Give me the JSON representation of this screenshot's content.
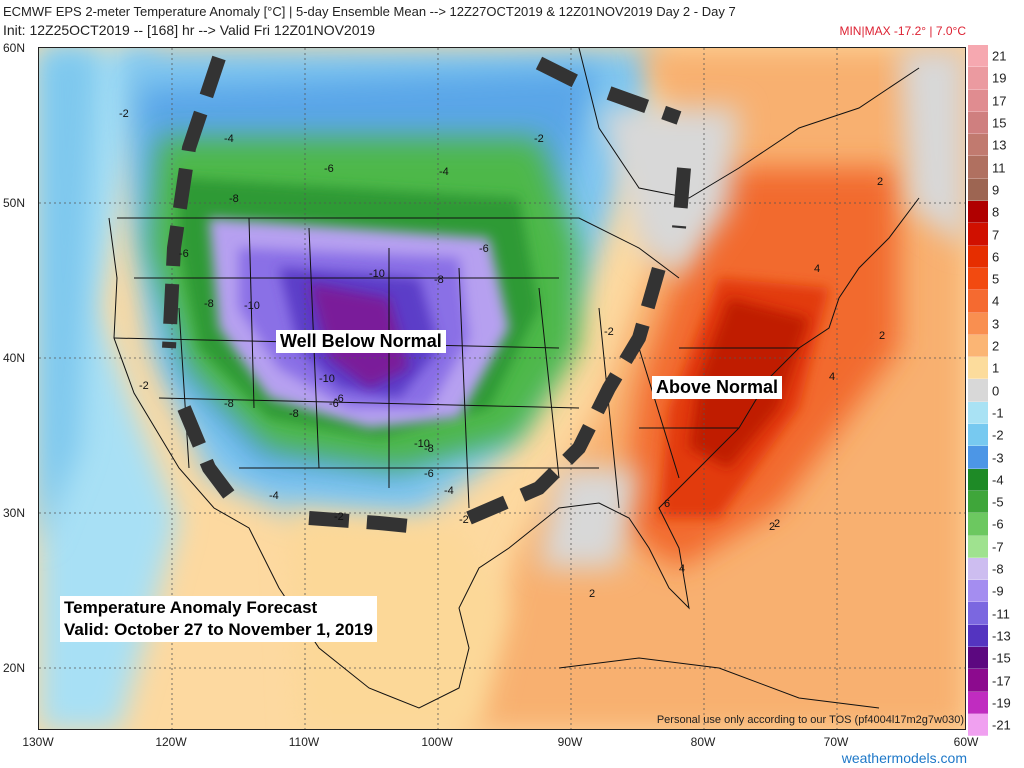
{
  "header": {
    "line1": "ECMWF EPS 2-meter Temperature Anomaly [°C] | 5-day Ensemble Mean --> 12Z27OCT2019 & 12Z01NOV2019  Day 2 - Day 7",
    "line2": "Init: 12Z25OCT2019 -- [168] hr --> Valid Fri 12Z01NOV2019",
    "minmax": "MIN|MAX -17.2° | 7.0°C"
  },
  "axes": {
    "lat_labels": [
      "60N",
      "50N",
      "40N",
      "30N",
      "20N"
    ],
    "lon_labels": [
      "130W",
      "120W",
      "110W",
      "100W",
      "90W",
      "80W",
      "70W",
      "60W"
    ]
  },
  "colorbar": {
    "labels": [
      "21",
      "19",
      "17",
      "15",
      "13",
      "11",
      "9",
      "8",
      "7",
      "6",
      "5",
      "4",
      "3",
      "2",
      "1",
      "0",
      "-1",
      "-2",
      "-3",
      "-4",
      "-5",
      "-6",
      "-7",
      "-8",
      "-9",
      "-11",
      "-13",
      "-15",
      "-17",
      "-19",
      "-21"
    ],
    "colors": [
      "#f6a8b0",
      "#eb9aa0",
      "#e08c90",
      "#cf7f7f",
      "#c17a6f",
      "#b07060",
      "#9d6552",
      "#b00000",
      "#d01000",
      "#e62e00",
      "#f24a10",
      "#f56a30",
      "#f98f50",
      "#fbb574",
      "#fcdc9c",
      "#d8d8d8",
      "#a9e2f4",
      "#77c9f0",
      "#4c96e6",
      "#1e8a26",
      "#3fa63a",
      "#6cc860",
      "#9fe28f",
      "#cdbdf0",
      "#a48df0",
      "#7b67e0",
      "#5434c0",
      "#5c0880",
      "#8c0a8e",
      "#c02cc0",
      "#f0a0f0"
    ]
  },
  "annotations": {
    "well_below": "Well Below Normal",
    "above": "Above Normal",
    "box_line1": "Temperature Anomaly Forecast",
    "box_line2": "Valid:  October 27 to November 1, 2019"
  },
  "contour_labels": [
    "-2",
    "-4",
    "-6",
    "-4",
    "-2",
    "-8",
    "-6",
    "-6",
    "-8",
    "-10",
    "-10",
    "-8",
    "-10",
    "-8",
    "-6",
    "-8",
    "-6",
    "-10",
    "-8",
    "-6",
    "-4",
    "-4",
    "-2",
    "-2",
    "-2",
    "-2",
    "2",
    "4",
    "2",
    "2",
    "4",
    "6",
    "2",
    "2",
    "4"
  ],
  "footer": {
    "credit": "Personal use only according to our TOS (pf4004l17m2g7w030)",
    "site": "weathermodels.com"
  }
}
